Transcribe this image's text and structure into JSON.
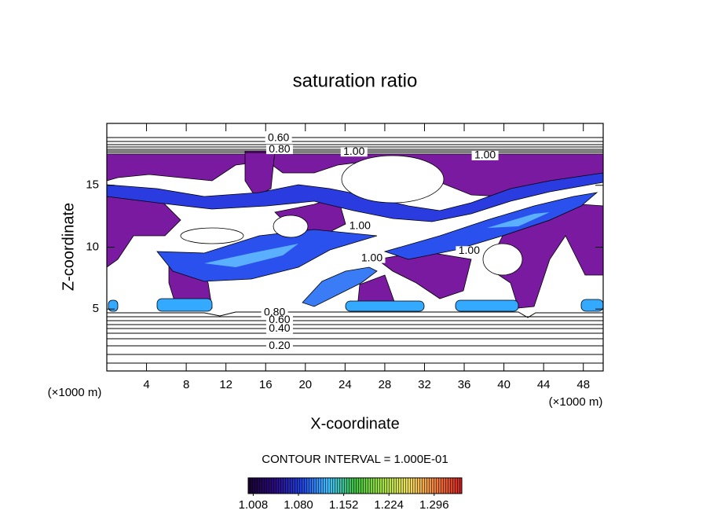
{
  "chart_data": {
    "type": "contour",
    "title": "saturation ratio",
    "x_label": "X-coordinate",
    "y_label": "Z-coordinate",
    "x_unit_left": "(×1000 m)",
    "x_unit_right": "(×1000 m)",
    "xlim": [
      0,
      50
    ],
    "xticks": [
      4,
      8,
      12,
      16,
      20,
      24,
      28,
      32,
      36,
      40,
      44,
      48
    ],
    "ylim": [
      0,
      20
    ],
    "yticks": [
      5,
      10,
      15
    ],
    "contour_interval": "CONTOUR INTERVAL = 1.000E-01",
    "contour_labels": [
      {
        "label": "0.60",
        "x": 17.3,
        "y": 18.8
      },
      {
        "label": "0.80",
        "x": 17.4,
        "y": 17.9
      },
      {
        "label": "1.00",
        "x": 24.9,
        "y": 17.7
      },
      {
        "label": "1.00",
        "x": 38.1,
        "y": 17.4
      },
      {
        "label": "1.00",
        "x": 25.5,
        "y": 11.7
      },
      {
        "label": "1.00",
        "x": 26.7,
        "y": 9.1
      },
      {
        "label": "1.00",
        "x": 36.5,
        "y": 9.7
      },
      {
        "label": "0.80",
        "x": 16.9,
        "y": 4.7
      },
      {
        "label": "0.60",
        "x": 17.4,
        "y": 4.1
      },
      {
        "label": "0.40",
        "x": 17.4,
        "y": 3.4
      },
      {
        "label": "0.20",
        "x": 17.4,
        "y": 2.0
      }
    ],
    "colorbar": {
      "lim": [
        1.0,
        1.34
      ],
      "ticks": [
        1.008,
        {
          "value": 1.08,
          "label": "1.080"
        },
        1.152,
        1.224,
        1.296
      ],
      "colormap": [
        "#1a0030",
        "#2a0a80",
        "#2040e0",
        "#40c0ff",
        "#40c040",
        "#a0e040",
        "#f0e060",
        "#f08040",
        "#d02020"
      ]
    }
  }
}
